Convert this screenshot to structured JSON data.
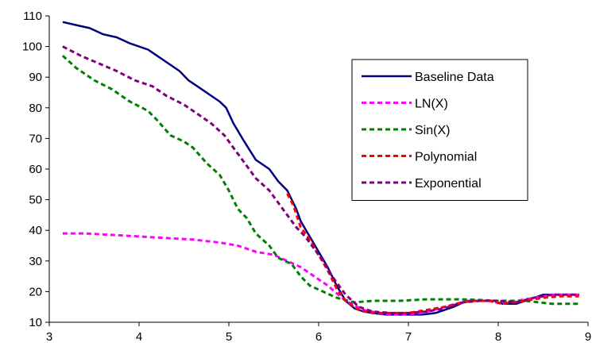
{
  "chart_data": {
    "type": "line",
    "title": "",
    "xlabel": "",
    "ylabel": "",
    "xlim": [
      3,
      9
    ],
    "ylim": [
      10,
      110
    ],
    "xticks": [
      3,
      4,
      5,
      6,
      7,
      8,
      9
    ],
    "yticks": [
      10,
      20,
      30,
      40,
      50,
      60,
      70,
      80,
      90,
      100,
      110
    ],
    "grid": false,
    "legend_position": "right",
    "series": [
      {
        "name": "Baseline Data",
        "color": "#000080",
        "style": "solid",
        "points": [
          [
            3.15,
            108
          ],
          [
            3.3,
            107
          ],
          [
            3.45,
            106
          ],
          [
            3.6,
            104
          ],
          [
            3.75,
            103
          ],
          [
            3.9,
            101
          ],
          [
            4.1,
            99
          ],
          [
            4.2,
            97
          ],
          [
            4.3,
            95
          ],
          [
            4.45,
            92
          ],
          [
            4.55,
            89
          ],
          [
            4.65,
            87
          ],
          [
            4.8,
            84
          ],
          [
            4.9,
            82
          ],
          [
            4.97,
            80
          ],
          [
            5.05,
            75
          ],
          [
            5.15,
            70
          ],
          [
            5.3,
            63
          ],
          [
            5.45,
            60
          ],
          [
            5.55,
            56
          ],
          [
            5.65,
            53
          ],
          [
            5.75,
            47
          ],
          [
            5.8,
            43
          ],
          [
            5.9,
            38
          ],
          [
            6.0,
            33
          ],
          [
            6.1,
            28
          ],
          [
            6.2,
            22
          ],
          [
            6.3,
            17
          ],
          [
            6.4,
            14.5
          ],
          [
            6.5,
            13.5
          ],
          [
            6.6,
            13
          ],
          [
            6.75,
            12.5
          ],
          [
            6.9,
            12.5
          ],
          [
            7.0,
            12.5
          ],
          [
            7.15,
            12.5
          ],
          [
            7.3,
            13
          ],
          [
            7.5,
            15
          ],
          [
            7.65,
            17
          ],
          [
            7.8,
            17
          ],
          [
            7.95,
            17
          ],
          [
            8.05,
            16
          ],
          [
            8.2,
            16
          ],
          [
            8.4,
            18
          ],
          [
            8.5,
            19
          ],
          [
            8.7,
            19
          ],
          [
            8.9,
            19
          ]
        ]
      },
      {
        "name": "LN(X)",
        "color": "#ff00ff",
        "style": "dashed",
        "points": [
          [
            3.15,
            39
          ],
          [
            3.4,
            39
          ],
          [
            3.7,
            38.5
          ],
          [
            4.0,
            38
          ],
          [
            4.3,
            37.5
          ],
          [
            4.6,
            37
          ],
          [
            4.9,
            36
          ],
          [
            5.1,
            35
          ],
          [
            5.3,
            33
          ],
          [
            5.5,
            32
          ],
          [
            5.65,
            30
          ],
          [
            5.8,
            28
          ],
          [
            5.95,
            25
          ],
          [
            6.1,
            22
          ],
          [
            6.3,
            17
          ],
          [
            6.5,
            14
          ],
          [
            6.7,
            12.8
          ],
          [
            6.9,
            12.5
          ],
          [
            7.15,
            13
          ],
          [
            7.4,
            15
          ],
          [
            7.65,
            17
          ],
          [
            7.9,
            17
          ],
          [
            8.05,
            16
          ],
          [
            8.3,
            17.5
          ],
          [
            8.6,
            19
          ],
          [
            8.9,
            19
          ]
        ]
      },
      {
        "name": "Sin(X)",
        "color": "#008000",
        "style": "dashed",
        "points": [
          [
            3.15,
            97
          ],
          [
            3.3,
            93
          ],
          [
            3.5,
            89
          ],
          [
            3.7,
            86
          ],
          [
            3.9,
            82
          ],
          [
            4.1,
            79
          ],
          [
            4.2,
            76
          ],
          [
            4.35,
            71
          ],
          [
            4.5,
            69
          ],
          [
            4.6,
            67
          ],
          [
            4.75,
            62
          ],
          [
            4.9,
            58
          ],
          [
            5.0,
            53
          ],
          [
            5.1,
            47
          ],
          [
            5.2,
            44
          ],
          [
            5.3,
            39
          ],
          [
            5.45,
            35
          ],
          [
            5.55,
            31
          ],
          [
            5.7,
            29
          ],
          [
            5.8,
            25
          ],
          [
            5.9,
            22
          ],
          [
            6.05,
            20
          ],
          [
            6.2,
            18
          ],
          [
            6.4,
            16.5
          ],
          [
            6.6,
            17
          ],
          [
            6.9,
            17
          ],
          [
            7.2,
            17.5
          ],
          [
            7.6,
            17.5
          ],
          [
            8.0,
            17
          ],
          [
            8.3,
            17
          ],
          [
            8.6,
            16
          ],
          [
            8.9,
            16
          ]
        ]
      },
      {
        "name": "Polynomial",
        "color": "#ff0000",
        "style": "dashed",
        "points": [
          [
            5.65,
            52
          ],
          [
            5.72,
            48
          ],
          [
            5.8,
            41
          ],
          [
            5.9,
            37
          ],
          [
            6.0,
            32
          ],
          [
            6.1,
            27
          ],
          [
            6.2,
            21
          ],
          [
            6.3,
            17
          ],
          [
            6.45,
            14
          ],
          [
            6.6,
            13
          ],
          [
            6.8,
            13
          ],
          [
            7.0,
            13
          ],
          [
            7.2,
            14
          ],
          [
            7.4,
            15
          ],
          [
            7.55,
            16
          ],
          [
            7.7,
            17
          ],
          [
            7.9,
            17
          ],
          [
            8.05,
            16
          ],
          [
            8.3,
            17
          ],
          [
            8.5,
            18
          ],
          [
            8.7,
            18.5
          ],
          [
            8.9,
            18.5
          ]
        ]
      },
      {
        "name": "Exponential",
        "color": "#800080",
        "style": "dashed",
        "points": [
          [
            3.15,
            100
          ],
          [
            3.35,
            97
          ],
          [
            3.55,
            94.5
          ],
          [
            3.75,
            92
          ],
          [
            3.95,
            89
          ],
          [
            4.15,
            87
          ],
          [
            4.3,
            84
          ],
          [
            4.5,
            81
          ],
          [
            4.65,
            78
          ],
          [
            4.8,
            75
          ],
          [
            4.95,
            71
          ],
          [
            5.05,
            67
          ],
          [
            5.15,
            63
          ],
          [
            5.3,
            57
          ],
          [
            5.45,
            53
          ],
          [
            5.6,
            47
          ],
          [
            5.75,
            41
          ],
          [
            5.85,
            38
          ],
          [
            5.95,
            34
          ],
          [
            6.05,
            30
          ],
          [
            6.15,
            25
          ],
          [
            6.3,
            19
          ],
          [
            6.45,
            15
          ],
          [
            6.6,
            13.5
          ],
          [
            6.8,
            13
          ],
          [
            7.0,
            13
          ],
          [
            7.2,
            13.5
          ],
          [
            7.4,
            14.5
          ],
          [
            7.6,
            16.5
          ],
          [
            7.8,
            17
          ],
          [
            8.0,
            17
          ],
          [
            8.2,
            16.5
          ],
          [
            8.4,
            18
          ],
          [
            8.6,
            19
          ],
          [
            8.9,
            19
          ]
        ]
      }
    ]
  }
}
